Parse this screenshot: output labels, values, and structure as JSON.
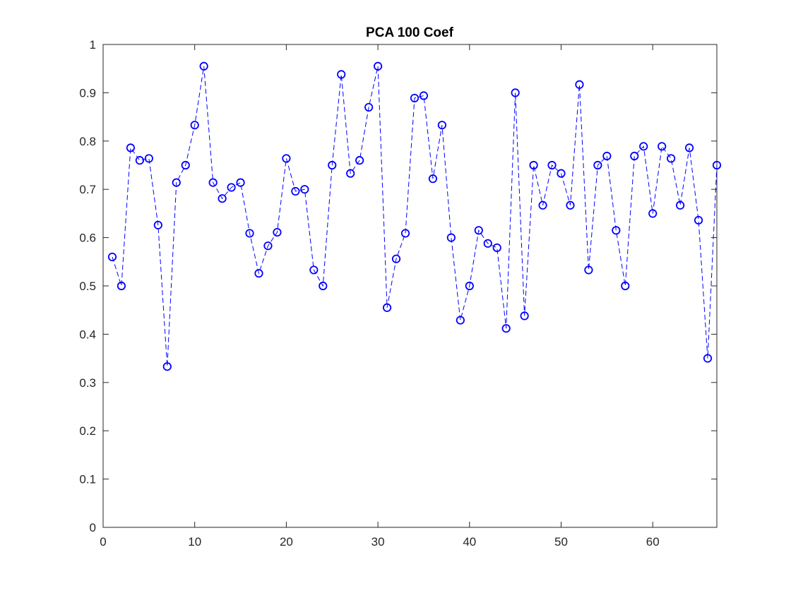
{
  "chart_data": {
    "type": "line",
    "title": "PCA 100 Coef",
    "xlabel": "",
    "ylabel": "",
    "xlim": [
      0,
      67
    ],
    "ylim": [
      0,
      1
    ],
    "x_ticks": [
      "0",
      "10",
      "20",
      "30",
      "40",
      "50",
      "60"
    ],
    "y_ticks": [
      "0",
      "0.1",
      "0.2",
      "0.3",
      "0.4",
      "0.5",
      "0.6",
      "0.7",
      "0.8",
      "0.9",
      "1"
    ],
    "grid": false,
    "legend": "none",
    "line_style": "dashed",
    "marker": "circle",
    "series_color": "#0000ff",
    "series": [
      {
        "x": [
          1,
          2,
          3,
          4,
          5,
          6,
          7,
          8,
          9,
          10,
          11,
          12,
          13,
          14,
          15,
          16,
          17,
          18,
          19,
          20,
          21,
          22,
          23,
          24,
          25,
          26,
          27,
          28,
          29,
          30,
          31,
          32,
          33,
          34,
          35,
          36,
          37,
          38,
          39,
          40,
          41,
          42,
          43,
          44,
          45,
          46,
          47,
          48,
          49,
          50,
          51,
          52,
          53,
          54,
          55,
          56,
          57,
          58,
          59,
          60,
          61,
          62,
          63,
          64,
          65,
          66,
          67
        ],
        "values": [
          0.56,
          0.5,
          0.786,
          0.76,
          0.764,
          0.626,
          0.333,
          0.714,
          0.75,
          0.833,
          0.955,
          0.714,
          0.681,
          0.704,
          0.714,
          0.609,
          0.526,
          0.583,
          0.611,
          0.764,
          0.696,
          0.7,
          0.533,
          0.5,
          0.75,
          0.938,
          0.733,
          0.76,
          0.87,
          0.955,
          0.455,
          0.556,
          0.609,
          0.889,
          0.894,
          0.722,
          0.833,
          0.6,
          0.429,
          0.5,
          0.615,
          0.588,
          0.579,
          0.412,
          0.9,
          0.438,
          0.75,
          0.667,
          0.75,
          0.733,
          0.667,
          0.917,
          0.533,
          0.75,
          0.769,
          0.615,
          0.5,
          0.769,
          0.789,
          0.65,
          0.789,
          0.764,
          0.667,
          0.786,
          0.636,
          0.35,
          0.75
        ]
      }
    ]
  }
}
